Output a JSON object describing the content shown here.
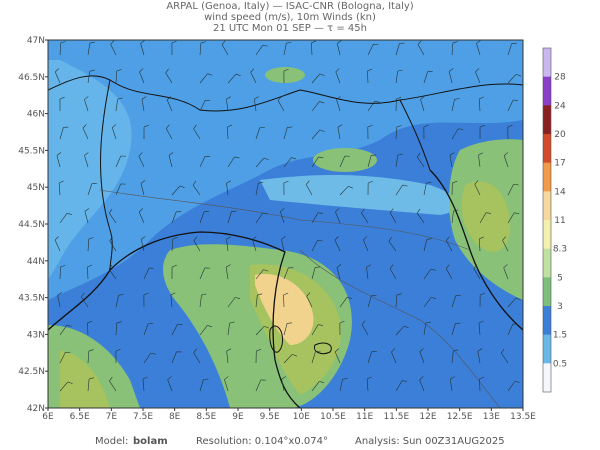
{
  "header": {
    "lines": [
      "ARPAL (Genoa, Italy)  —  ISAC-CNR (Bologna, Italy)",
      "wind speed (m/s), 10m Winds (kn)",
      "21 UTC Mon 01 SEP  —  τ = 45h"
    ]
  },
  "map": {
    "lat_labels": [
      "47N",
      "46.5N",
      "46N",
      "45.5N",
      "45N",
      "44.5N",
      "44N",
      "43.5N",
      "43N",
      "42.5N",
      "42N"
    ],
    "lon_labels": [
      "6E",
      "6.5E",
      "7E",
      "7.5E",
      "8E",
      "8.5E",
      "9E",
      "9.5E",
      "10E",
      "10.5E",
      "11E",
      "11.5E",
      "12E",
      "12.5E",
      "13E",
      "13.5E"
    ]
  },
  "colorbar": {
    "labels": [
      "28",
      "24",
      "20",
      "17",
      "14",
      "11",
      "8.3",
      "5",
      "3",
      "1.5",
      "0.5"
    ]
  },
  "footer": {
    "model_label": "Model:",
    "model": "bolam",
    "resolution": "Resolution: 0.104°x0.074°",
    "analysis": "Analysis: Sun 00Z31AUG2025"
  }
}
